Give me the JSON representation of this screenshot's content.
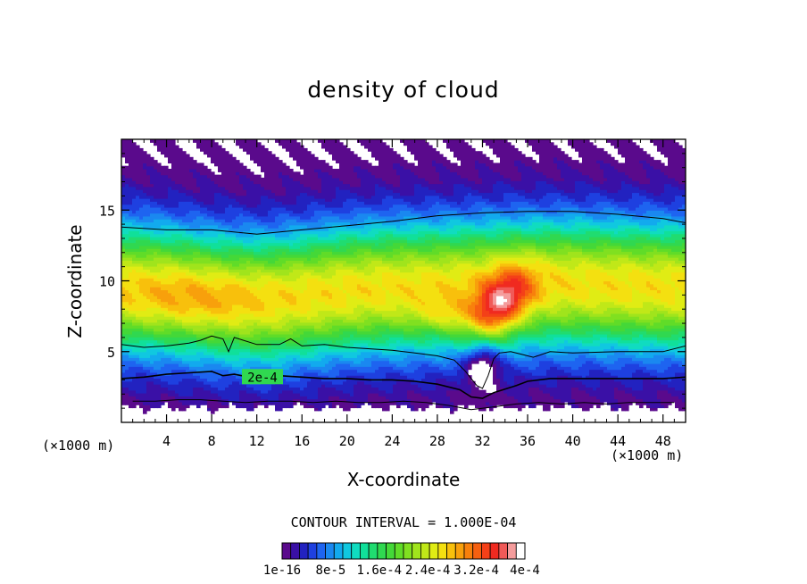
{
  "chart_data": {
    "type": "heatmap",
    "title": "density of cloud",
    "xlabel": "X-coordinate",
    "ylabel": "Z-coordinate",
    "x_units": "(×1000 m)",
    "y_units": "(×1000 m)",
    "xlim": [
      0,
      50
    ],
    "ylim": [
      0,
      20
    ],
    "x_ticks": [
      4,
      8,
      12,
      16,
      20,
      24,
      28,
      32,
      36,
      40,
      44,
      48
    ],
    "y_ticks": [
      5,
      10,
      15
    ],
    "contour_interval_label": "CONTOUR INTERVAL = 1.000E-04",
    "contour_label": "2e-4",
    "contour_label_position": [
      12.5,
      3.2
    ],
    "contours": [
      {
        "value": "2e-4",
        "points": [
          [
            0,
            3.1
          ],
          [
            2,
            3.2
          ],
          [
            4,
            3.4
          ],
          [
            6,
            3.5
          ],
          [
            8,
            3.6
          ],
          [
            9,
            3.3
          ],
          [
            10,
            3.4
          ],
          [
            12,
            3.1
          ],
          [
            14,
            3.3
          ],
          [
            16,
            3.2
          ],
          [
            18,
            3.1
          ],
          [
            20,
            3.1
          ],
          [
            22,
            3.0
          ],
          [
            24,
            3.0
          ],
          [
            26,
            2.9
          ],
          [
            28,
            2.7
          ],
          [
            30,
            2.3
          ],
          [
            31,
            1.8
          ],
          [
            32,
            1.7
          ],
          [
            33,
            2.1
          ],
          [
            35,
            2.6
          ],
          [
            36,
            2.9
          ],
          [
            38,
            3.1
          ],
          [
            40,
            3.1
          ],
          [
            44,
            3.1
          ],
          [
            48,
            3.1
          ],
          [
            50,
            3.2
          ]
        ]
      },
      {
        "value": "1e-4",
        "points": [
          [
            0,
            5.5
          ],
          [
            2,
            5.3
          ],
          [
            4,
            5.4
          ],
          [
            6,
            5.6
          ],
          [
            7,
            5.8
          ],
          [
            8,
            6.1
          ],
          [
            9,
            5.9
          ],
          [
            9.5,
            5.0
          ],
          [
            10,
            6.0
          ],
          [
            12,
            5.5
          ],
          [
            14,
            5.5
          ],
          [
            15,
            5.9
          ],
          [
            16,
            5.4
          ],
          [
            18,
            5.5
          ],
          [
            20,
            5.3
          ],
          [
            22,
            5.2
          ],
          [
            24,
            5.1
          ],
          [
            26,
            4.9
          ],
          [
            28,
            4.7
          ],
          [
            29.5,
            4.4
          ],
          [
            30.5,
            3.6
          ],
          [
            31.5,
            2.6
          ],
          [
            32,
            2.4
          ],
          [
            32.5,
            3.3
          ],
          [
            33,
            4.5
          ],
          [
            33.5,
            4.9
          ],
          [
            34.5,
            5.0
          ],
          [
            35.5,
            4.8
          ],
          [
            36.5,
            4.6
          ],
          [
            38,
            5.0
          ],
          [
            40,
            4.9
          ],
          [
            44,
            5.0
          ],
          [
            48,
            5.0
          ],
          [
            50,
            5.4
          ]
        ]
      },
      {
        "value": "1e-4",
        "points": [
          [
            0,
            13.8
          ],
          [
            4,
            13.6
          ],
          [
            8,
            13.6
          ],
          [
            12,
            13.3
          ],
          [
            16,
            13.6
          ],
          [
            20,
            13.9
          ],
          [
            24,
            14.2
          ],
          [
            28,
            14.6
          ],
          [
            32,
            14.8
          ],
          [
            36,
            14.9
          ],
          [
            40,
            14.9
          ],
          [
            44,
            14.7
          ],
          [
            48,
            14.4
          ],
          [
            50,
            14.1
          ]
        ]
      },
      {
        "value": "1.6e-4",
        "points": [
          [
            1,
            1.5
          ],
          [
            3,
            1.5
          ],
          [
            5,
            1.6
          ],
          [
            7,
            1.6
          ],
          [
            9,
            1.5
          ],
          [
            11,
            1.4
          ],
          [
            13,
            1.5
          ],
          [
            15,
            1.5
          ],
          [
            17,
            1.4
          ],
          [
            19,
            1.5
          ],
          [
            21,
            1.4
          ],
          [
            23,
            1.4
          ],
          [
            25,
            1.5
          ],
          [
            27,
            1.4
          ],
          [
            29,
            1.2
          ],
          [
            31,
            0.9
          ],
          [
            33,
            1.1
          ],
          [
            35,
            1.3
          ],
          [
            37,
            1.4
          ],
          [
            39,
            1.3
          ],
          [
            41,
            1.4
          ],
          [
            43,
            1.3
          ],
          [
            45,
            1.4
          ],
          [
            47,
            1.4
          ],
          [
            49,
            1.4
          ]
        ]
      }
    ],
    "colorbar": {
      "labels": [
        "1e-16",
        "8e-5",
        "1.6e-4",
        "2.4e-4",
        "3.2e-4",
        "4e-4"
      ],
      "levels": 28,
      "min": 1e-16,
      "max": 0.0004
    }
  }
}
